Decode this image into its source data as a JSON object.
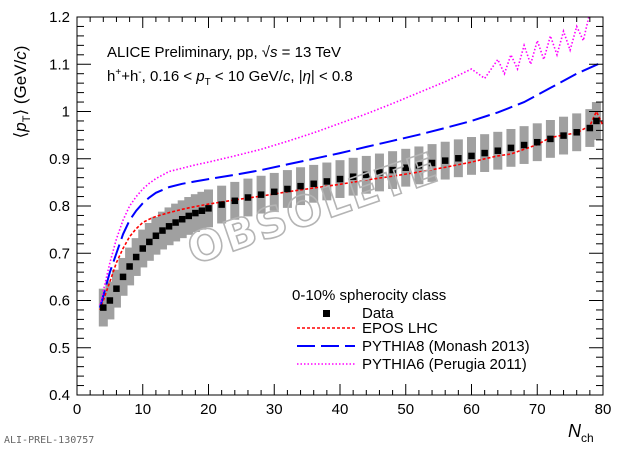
{
  "chart_data": {
    "type": "scatter",
    "header": {
      "line1_pre": "ALICE Preliminary, pp, ",
      "line1_sqrt": "√",
      "line1_s": "s",
      "line1_post": " = 13 TeV",
      "line2_pre": "h",
      "line2_sup": "+",
      "line2_mid": "+h",
      "line2_sup2": "-",
      "line2_post1": ", 0.16 < ",
      "line2_pt_p": "p",
      "line2_pt_sub": "T",
      "line2_post2": " < 10 GeV/",
      "line2_c": "c",
      "line2_post3": ", |",
      "line2_eta": "η",
      "line2_post4": "| < 0.8"
    },
    "ylabel": {
      "open": "⟨",
      "p": "p",
      "sub": "T",
      "close": "⟩",
      "unit_pre": " (GeV/",
      "unit_c": "c",
      "unit_post": ")"
    },
    "xlabel": {
      "main": "N",
      "sub": "ch"
    },
    "xlim": [
      0,
      80
    ],
    "ylim": [
      0.4,
      1.2
    ],
    "xticks": [
      "0",
      "10",
      "20",
      "30",
      "40",
      "50",
      "60",
      "70",
      "80"
    ],
    "yticks": [
      "0.4",
      "0.5",
      "0.6",
      "0.7",
      "0.8",
      "0.9",
      "1",
      "1.1",
      "1.2"
    ],
    "legend": {
      "title": "0-10% spherocity class",
      "position": "bottom-right",
      "entries": [
        "Data",
        "EPOS LHC",
        "PYTHIA8 (Monash 2013)",
        "PYTHIA6 (Perugia 2011)"
      ]
    },
    "watermark": "OBSOLETE",
    "footer": "ALI-PREL-130757",
    "data": {
      "x": [
        4,
        5,
        6,
        7,
        8,
        9,
        10,
        11,
        12,
        13,
        14,
        15,
        16,
        17,
        18,
        19,
        20,
        22,
        24,
        26,
        28,
        30,
        32,
        34,
        36,
        38,
        40,
        42,
        44,
        46,
        48,
        50,
        52,
        54,
        56,
        58,
        60,
        62,
        64,
        66,
        68,
        70,
        72,
        74,
        76,
        78,
        79
      ],
      "y": [
        0.585,
        0.6,
        0.625,
        0.65,
        0.672,
        0.692,
        0.71,
        0.724,
        0.737,
        0.748,
        0.757,
        0.765,
        0.772,
        0.779,
        0.785,
        0.79,
        0.795,
        0.803,
        0.811,
        0.818,
        0.824,
        0.83,
        0.836,
        0.842,
        0.847,
        0.852,
        0.857,
        0.862,
        0.866,
        0.871,
        0.876,
        0.881,
        0.886,
        0.891,
        0.896,
        0.901,
        0.906,
        0.912,
        0.917,
        0.923,
        0.929,
        0.935,
        0.942,
        0.949,
        0.956,
        0.965,
        0.98
      ],
      "sys_err": 0.04,
      "color": "#000000",
      "band_color": "#a0a0a0"
    },
    "series": [
      {
        "name": "EPOS LHC",
        "color": "#ff0000",
        "style": "dotted",
        "x": [
          3.5,
          4,
          5,
          6,
          7,
          8,
          9,
          10,
          11,
          12,
          14,
          16,
          18,
          20,
          24,
          28,
          32,
          36,
          40,
          44,
          48,
          52,
          56,
          60,
          62,
          64,
          66,
          68,
          70,
          72,
          74,
          76,
          78,
          79,
          80
        ],
        "y": [
          0.58,
          0.6,
          0.64,
          0.68,
          0.71,
          0.735,
          0.752,
          0.765,
          0.772,
          0.778,
          0.786,
          0.793,
          0.799,
          0.804,
          0.813,
          0.821,
          0.83,
          0.838,
          0.846,
          0.855,
          0.863,
          0.872,
          0.882,
          0.893,
          0.9,
          0.906,
          0.91,
          0.92,
          0.93,
          0.945,
          0.95,
          0.955,
          0.97,
          1.0,
          0.97
        ]
      },
      {
        "name": "PYTHIA8 (Monash 2013)",
        "color": "#0000ff",
        "style": "dashed",
        "x": [
          3.5,
          4,
          5,
          6,
          7,
          8,
          9,
          10,
          11,
          12,
          14,
          16,
          18,
          20,
          24,
          28,
          32,
          36,
          40,
          44,
          48,
          52,
          56,
          60,
          64,
          68,
          72,
          76,
          80
        ],
        "y": [
          0.585,
          0.61,
          0.66,
          0.7,
          0.74,
          0.77,
          0.79,
          0.806,
          0.818,
          0.828,
          0.84,
          0.847,
          0.852,
          0.857,
          0.866,
          0.876,
          0.888,
          0.9,
          0.912,
          0.925,
          0.938,
          0.951,
          0.965,
          0.98,
          0.998,
          1.02,
          1.05,
          1.08,
          1.105
        ]
      },
      {
        "name": "PYTHIA6 (Perugia 2011)",
        "color": "#ff00ff",
        "style": "dotted",
        "x": [
          3.5,
          4,
          5,
          6,
          7,
          8,
          9,
          10,
          11,
          12,
          14,
          16,
          18,
          20,
          24,
          28,
          32,
          36,
          40,
          44,
          48,
          52,
          56,
          60,
          62,
          64,
          65,
          66,
          67,
          68,
          69,
          70,
          71,
          72,
          73,
          74,
          75,
          76,
          77,
          78,
          79
        ],
        "y": [
          0.59,
          0.62,
          0.68,
          0.73,
          0.77,
          0.8,
          0.82,
          0.836,
          0.848,
          0.858,
          0.873,
          0.88,
          0.887,
          0.893,
          0.906,
          0.92,
          0.937,
          0.955,
          0.975,
          0.995,
          1.017,
          1.04,
          1.063,
          1.09,
          1.07,
          1.11,
          1.08,
          1.12,
          1.09,
          1.14,
          1.1,
          1.15,
          1.11,
          1.16,
          1.12,
          1.17,
          1.13,
          1.18,
          1.15,
          1.21,
          1.2
        ]
      }
    ]
  }
}
